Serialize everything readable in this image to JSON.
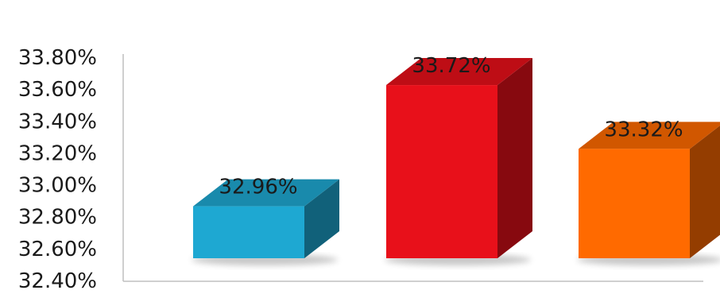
{
  "chart_data": {
    "type": "bar",
    "title": "",
    "xlabel": "",
    "ylabel": "",
    "categories": [
      "",
      "",
      ""
    ],
    "values": [
      32.96,
      33.72,
      33.32
    ],
    "data_labels": [
      "32.96%",
      "33.72%",
      "33.32%"
    ],
    "ylim": [
      32.4,
      33.8
    ],
    "yticks": [
      32.4,
      32.6,
      32.8,
      33.0,
      33.2,
      33.4,
      33.6,
      33.8
    ],
    "ytick_labels": [
      "32.40%",
      "32.60%",
      "32.80%",
      "33.00%",
      "33.20%",
      "33.40%",
      "33.60%",
      "33.80%"
    ],
    "grid": false,
    "legend": "none",
    "three_d": true,
    "bar_colors": [
      "#1ea8d2",
      "#e8101a",
      "#ff6a00"
    ]
  }
}
